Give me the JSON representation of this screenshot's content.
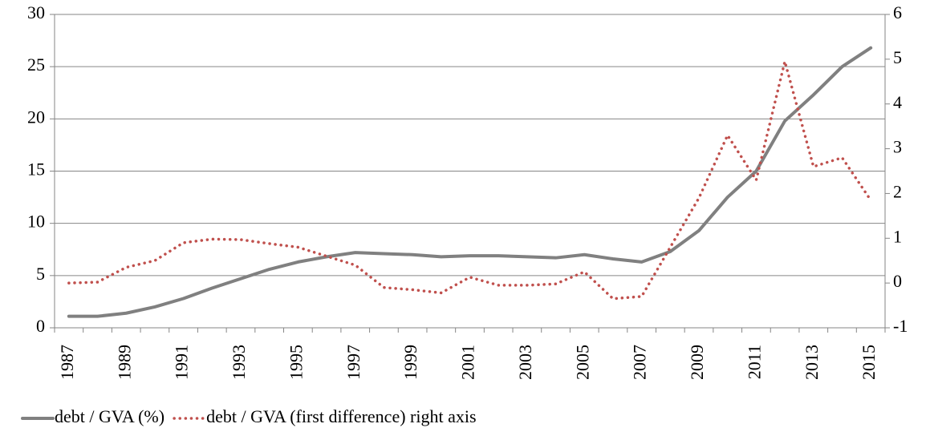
{
  "chart_data": {
    "type": "line",
    "categories": [
      "1987",
      null,
      "1989",
      null,
      "1991",
      null,
      "1993",
      null,
      "1995",
      null,
      "1997",
      null,
      "1999",
      null,
      "2001",
      null,
      "2003",
      null,
      "2005",
      null,
      "2007",
      null,
      "2009",
      null,
      "2011",
      null,
      "2013",
      null,
      "2015"
    ],
    "series": [
      {
        "name": "debt / GVA (%)",
        "color": "#808080",
        "values": [
          1.1,
          1.1,
          1.4,
          2.0,
          2.8,
          3.8,
          4.7,
          5.6,
          6.3,
          6.8,
          7.2,
          7.1,
          7.0,
          6.8,
          6.9,
          6.9,
          6.8,
          6.7,
          7.0,
          6.6,
          6.3,
          7.3,
          9.3,
          12.5,
          15.0,
          19.8,
          22.3,
          25.0,
          26.8
        ]
      },
      {
        "name": "debt / GVA (first difference) right axis",
        "color": "#c0504d",
        "axis": "y2",
        "values": [
          0.0,
          0.02,
          0.35,
          0.5,
          0.9,
          0.98,
          0.97,
          0.88,
          0.8,
          0.6,
          0.4,
          -0.1,
          -0.15,
          -0.22,
          0.13,
          -0.05,
          -0.05,
          -0.02,
          0.25,
          -0.35,
          -0.3,
          0.8,
          1.9,
          3.3,
          2.3,
          4.95,
          2.6,
          2.8,
          1.85
        ]
      }
    ],
    "ylim": [
      0,
      30
    ],
    "yticks": [
      0,
      5,
      10,
      15,
      20,
      25,
      30
    ],
    "y2lim": [
      -1,
      6
    ],
    "y2ticks": [
      -1,
      0,
      1,
      2,
      3,
      4,
      5,
      6
    ],
    "grid": true,
    "legend": "bottom"
  }
}
